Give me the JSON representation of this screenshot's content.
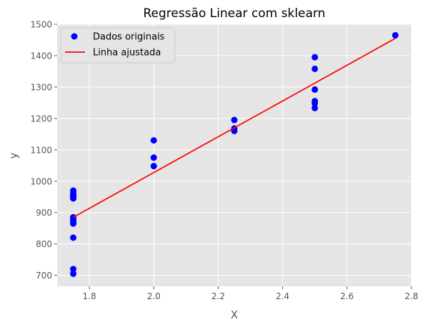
{
  "chart_data": {
    "type": "scatter",
    "title": "Regressão Linear com sklearn",
    "xlabel": "X",
    "ylabel": "y",
    "xlim": [
      1.7,
      2.8
    ],
    "ylim": [
      665,
      1500
    ],
    "xticks": [
      1.8,
      2.0,
      2.2,
      2.4,
      2.6,
      2.8
    ],
    "yticks": [
      700,
      800,
      900,
      1000,
      1100,
      1200,
      1300,
      1400,
      1500
    ],
    "grid": true,
    "legend_position": "upper-left",
    "series": [
      {
        "name": "Dados originais",
        "kind": "scatter",
        "color": "#0000ff",
        "points": [
          [
            1.75,
            705
          ],
          [
            1.75,
            720
          ],
          [
            1.75,
            820
          ],
          [
            1.75,
            865
          ],
          [
            1.75,
            872
          ],
          [
            1.75,
            878
          ],
          [
            1.75,
            885
          ],
          [
            1.75,
            945
          ],
          [
            1.75,
            950
          ],
          [
            1.75,
            955
          ],
          [
            1.75,
            962
          ],
          [
            1.75,
            970
          ],
          [
            2.0,
            1048
          ],
          [
            2.0,
            1075
          ],
          [
            2.0,
            1130
          ],
          [
            2.25,
            1160
          ],
          [
            2.25,
            1168
          ],
          [
            2.25,
            1195
          ],
          [
            2.5,
            1233
          ],
          [
            2.5,
            1248
          ],
          [
            2.5,
            1255
          ],
          [
            2.5,
            1292
          ],
          [
            2.5,
            1358
          ],
          [
            2.5,
            1395
          ],
          [
            2.75,
            1465
          ]
        ]
      },
      {
        "name": "Linha ajustada",
        "kind": "line",
        "color": "#ff0000",
        "points": [
          [
            1.75,
            885
          ],
          [
            2.75,
            1455
          ]
        ]
      }
    ]
  },
  "colors": {
    "plot_background": "#e5e5e5",
    "grid": "#ffffff",
    "text": "#555555",
    "title": "#000000"
  }
}
